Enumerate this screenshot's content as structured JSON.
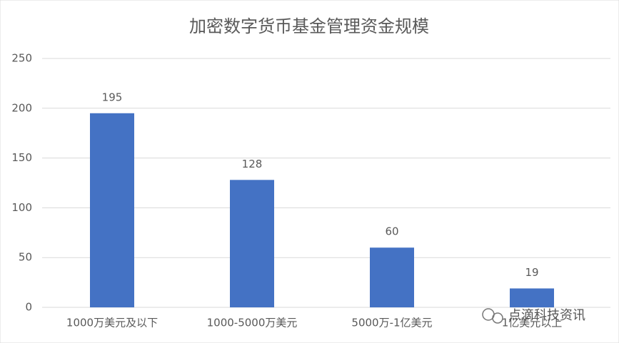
{
  "chart_data": {
    "type": "bar",
    "title": "加密数字货币基金管理资金规模",
    "categories": [
      "1000万美元及以下",
      "1000-5000万美元",
      "5000万-1亿美元",
      "1亿美元以上"
    ],
    "values": [
      195,
      128,
      60,
      19
    ],
    "color": "#4472c4",
    "ylim": [
      0,
      250
    ],
    "yticks": [
      0,
      50,
      100,
      150,
      200,
      250
    ],
    "grid": true
  },
  "watermark": "点滴科技资讯"
}
